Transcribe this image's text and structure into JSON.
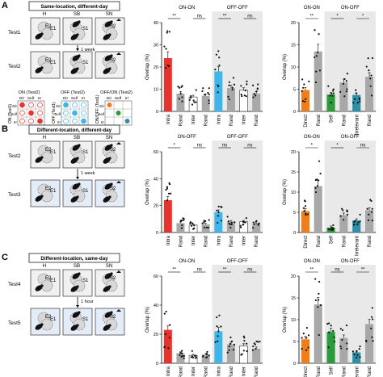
{
  "colors": {
    "red": "#e8322e",
    "blue": "#3fb5e8",
    "white_bar": "#ffffff",
    "gray_bar": "#a8a8a8",
    "orange": "#ef7d1a",
    "green": "#2a9a3c",
    "teal": "#2e8fa8",
    "shade": "#e9e9e9",
    "sig_line": "#000000"
  },
  "panels": [
    {
      "letter": "A",
      "title": "Same-location, different-day",
      "tests": [
        "Test1",
        "Test2"
      ],
      "cols": [
        "H",
        "SB",
        "SN"
      ],
      "interval": "1 week",
      "arena_top": [
        "E1",
        "E2",
        "S1",
        "S2"
      ],
      "arena_bottom": [
        "E1",
        "E2",
        "S1",
        "S2"
      ],
      "legend": {
        "on_title": "ON (Test2)",
        "off_title": "OFF (Test2)",
        "offon_title": "OFF/ON (Test2)",
        "on_row": "ON (Test1)",
        "off_row": "OFF (Test1)",
        "on_off_row": "ON/OFF (Test1)",
        "headers": [
          "Dir",
          "Self",
          "Irr"
        ]
      }
    },
    {
      "letter": "B",
      "title": "Different-location, different-day",
      "tests": [
        "Test2",
        "Test3"
      ],
      "cols": [
        "H",
        "SB",
        "SN"
      ],
      "interval": "1 week",
      "arena_top": [
        "E1",
        "E2",
        "S1",
        "S2"
      ],
      "arena_bottom": [
        "E1",
        "E2",
        "S1",
        "S2"
      ]
    },
    {
      "letter": "C",
      "title": "Different-location, same-day",
      "tests": [
        "Test4",
        "Test5"
      ],
      "cols": [
        "H",
        "SB",
        "SN"
      ],
      "interval": "1 hour",
      "arena_top": [
        "E1",
        "E2",
        "S1",
        "S2"
      ],
      "arena_bottom": [
        "E1",
        "E2",
        "S1",
        "S2"
      ]
    }
  ],
  "chart_data": [
    {
      "type": "bar",
      "panel": "A",
      "ylabel": "Overlap (%)",
      "ylim": [
        0,
        40
      ],
      "yticks": [
        0,
        10,
        20,
        30,
        40
      ],
      "group_labels": [
        "ON-ON",
        "OFF-OFF"
      ],
      "categories": [
        "Intra",
        "Rand",
        "Inter",
        "Rand",
        "Intra",
        "Rand",
        "Inter",
        "Rand"
      ],
      "values": [
        24,
        8,
        6.5,
        7,
        18,
        10.5,
        9.5,
        8
      ],
      "sig": [
        "**",
        "ns",
        "**",
        "ns"
      ]
    },
    {
      "type": "bar",
      "panel": "A",
      "ylabel": "Overlap (%)",
      "ylim": [
        0,
        20
      ],
      "yticks": [
        0,
        5,
        10,
        15,
        20
      ],
      "group_labels": [
        "ON-ON",
        "ON-OFF"
      ],
      "categories": [
        "Direct",
        "Rand",
        "Self",
        "Rand",
        "Irrelevant",
        "Rand"
      ],
      "values": [
        4.8,
        13.5,
        3.8,
        6.5,
        3.7,
        7.8
      ],
      "sig": [
        "**",
        "*",
        "*"
      ]
    },
    {
      "type": "bar",
      "panel": "B",
      "ylabel": "Overlap (%)",
      "ylim": [
        0,
        60
      ],
      "yticks": [
        0,
        20,
        40,
        60
      ],
      "group_labels": [
        "ON-OFF",
        "OFF-OFF"
      ],
      "categories": [
        "Intra",
        "Rand",
        "Inter",
        "Rand",
        "Intra",
        "Rand",
        "Inter",
        "Rand"
      ],
      "values": [
        24,
        7,
        5.5,
        6,
        15,
        8,
        8,
        6
      ],
      "sig": [
        "*",
        "ns",
        "ns",
        "ns"
      ]
    },
    {
      "type": "bar",
      "panel": "B",
      "ylabel": "Overlap (%)",
      "ylim": [
        0,
        20
      ],
      "yticks": [
        0,
        5,
        10,
        15,
        20
      ],
      "group_labels": [
        "ON-ON",
        "ON-OFF"
      ],
      "categories": [
        "Direct",
        "Rand",
        "Self",
        "Rand",
        "Irrelevant",
        "Rand"
      ],
      "values": [
        5.3,
        11.5,
        1.2,
        4.3,
        3,
        5.5
      ],
      "sig": [
        "*",
        "*",
        "ns"
      ]
    },
    {
      "type": "bar",
      "panel": "C",
      "ylabel": "Overlap (%)",
      "ylim": [
        0,
        60
      ],
      "yticks": [
        0,
        20,
        40,
        60
      ],
      "group_labels": [
        "ON-ON",
        "OFF-OFF"
      ],
      "categories": [
        "Intra",
        "Rand",
        "Inter",
        "Rand",
        "Intra",
        "Rand",
        "Inter",
        "Rand"
      ],
      "values": [
        23,
        7,
        5.5,
        6,
        22,
        13,
        12,
        10
      ],
      "sig": [
        "**",
        "ns",
        "**",
        "ns"
      ]
    },
    {
      "type": "bar",
      "panel": "C",
      "ylabel": "Overlap (%)",
      "ylim": [
        0,
        20
      ],
      "yticks": [
        0,
        5,
        10,
        15,
        20
      ],
      "group_labels": [
        "ON-ON",
        "ON-OFF"
      ],
      "categories": [
        "Direct",
        "Rand",
        "Self",
        "Rand",
        "Irrelevant",
        "Rand"
      ],
      "values": [
        5.5,
        13.5,
        7.2,
        5.8,
        2.5,
        9
      ],
      "sig": [
        "**",
        "ns",
        "**"
      ]
    }
  ]
}
